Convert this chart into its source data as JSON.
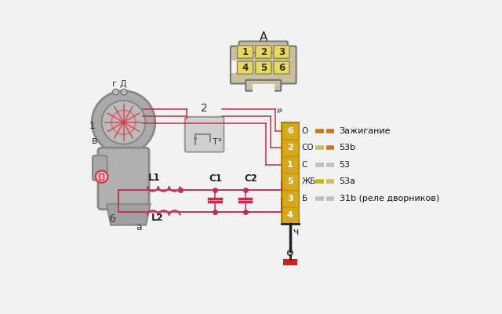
{
  "bg_color": "#f2f2f2",
  "connector_label": "A",
  "motor_labels": [
    "1",
    "в",
    "г",
    "Д",
    "б",
    "а"
  ],
  "thermo_label": "2",
  "thermo_temp": "T°",
  "block_pins": [
    "6",
    "2",
    "1",
    "5",
    "3",
    "4"
  ],
  "pin_labels_right": [
    "0",
    "CO",
    "C",
    "ЖБ",
    "Б",
    ""
  ],
  "wire_labels": [
    "Зажигание",
    "53b",
    "53",
    "53a",
    "31b (реле дворников)"
  ],
  "wire_color_left": [
    "#c87828",
    "#c8c060",
    "#c0c0c0",
    "#c8b820",
    "#c0c0c0"
  ],
  "wire_color_right": [
    "#c87828",
    "#c87828",
    "#c0c0c0",
    "#c8c060",
    "#c0c0c0"
  ],
  "block_color": "#d4a820",
  "block_edge": "#aa8800",
  "ground_label": "ч",
  "arrow_sym": "»",
  "comp_labels": [
    "L1",
    "L2",
    "C1",
    "C2"
  ],
  "red": "#c03050",
  "dark_red": "#aa2040"
}
